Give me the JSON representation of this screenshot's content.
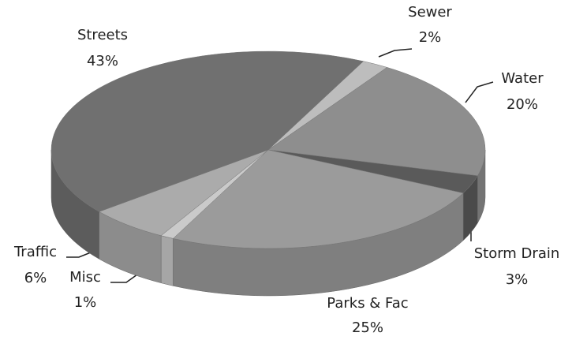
{
  "chart_data": {
    "type": "pie3d",
    "categories": [
      "Sewer",
      "Water",
      "Storm Drain",
      "Parks & Fac",
      "Misc",
      "Traffic",
      "Streets"
    ],
    "values": [
      2,
      20,
      3,
      25,
      1,
      6,
      43
    ],
    "value_labels": [
      "2%",
      "20%",
      "3%",
      "25%",
      "1%",
      "6%",
      "43%"
    ],
    "colors": [
      "#bdbdbd",
      "#8e8e8e",
      "#5a5a5a",
      "#9b9b9b",
      "#cacaca",
      "#ababab",
      "#707070"
    ]
  }
}
